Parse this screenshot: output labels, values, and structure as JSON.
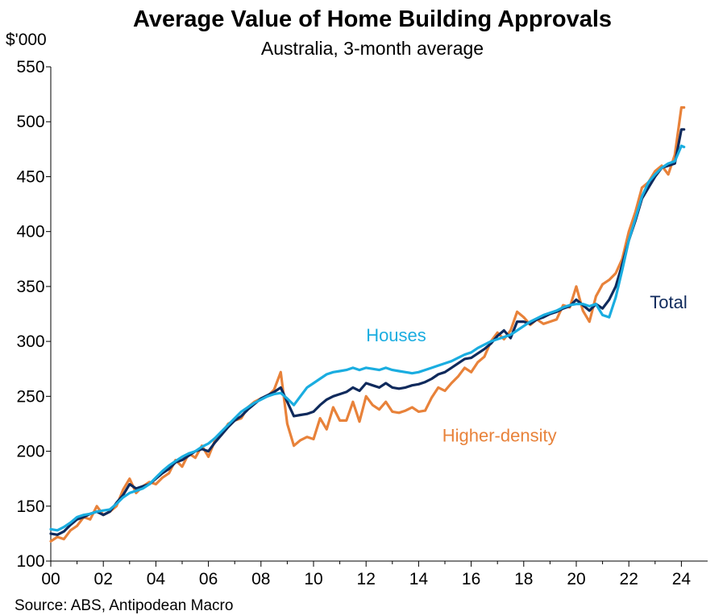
{
  "chart_data": {
    "type": "line",
    "title": "Average Value of Home Building Approvals",
    "subtitle": "Australia, 3-month average",
    "ylabel": "$'000",
    "source": "Source: ABS, Antipodean Macro",
    "xlim": [
      2000,
      2025
    ],
    "ylim": [
      100,
      550
    ],
    "x_ticks": [
      "00",
      "02",
      "04",
      "06",
      "08",
      "10",
      "12",
      "14",
      "16",
      "18",
      "20",
      "22",
      "24"
    ],
    "y_ticks": [
      "100",
      "150",
      "200",
      "250",
      "300",
      "350",
      "400",
      "450",
      "500",
      "550"
    ],
    "series": [
      {
        "name": "Higher-density",
        "color": "#E8823A",
        "points": [
          [
            2000,
            118
          ],
          [
            2000.25,
            122
          ],
          [
            2000.5,
            120
          ],
          [
            2000.75,
            128
          ],
          [
            2001,
            132
          ],
          [
            2001.25,
            140
          ],
          [
            2001.5,
            138
          ],
          [
            2001.75,
            150
          ],
          [
            2002,
            142
          ],
          [
            2002.25,
            145
          ],
          [
            2002.5,
            150
          ],
          [
            2002.75,
            165
          ],
          [
            2003,
            175
          ],
          [
            2003.25,
            162
          ],
          [
            2003.5,
            168
          ],
          [
            2003.75,
            172
          ],
          [
            2004,
            170
          ],
          [
            2004.25,
            176
          ],
          [
            2004.5,
            180
          ],
          [
            2004.75,
            192
          ],
          [
            2005,
            186
          ],
          [
            2005.25,
            198
          ],
          [
            2005.5,
            194
          ],
          [
            2005.75,
            205
          ],
          [
            2006,
            195
          ],
          [
            2006.25,
            210
          ],
          [
            2006.5,
            215
          ],
          [
            2006.75,
            225
          ],
          [
            2007,
            228
          ],
          [
            2007.25,
            230
          ],
          [
            2007.5,
            240
          ],
          [
            2007.75,
            245
          ],
          [
            2008,
            248
          ],
          [
            2008.25,
            250
          ],
          [
            2008.5,
            256
          ],
          [
            2008.75,
            272
          ],
          [
            2009,
            225
          ],
          [
            2009.25,
            205
          ],
          [
            2009.5,
            210
          ],
          [
            2009.75,
            213
          ],
          [
            2010,
            211
          ],
          [
            2010.25,
            230
          ],
          [
            2010.5,
            220
          ],
          [
            2010.75,
            240
          ],
          [
            2011,
            228
          ],
          [
            2011.25,
            228
          ],
          [
            2011.5,
            245
          ],
          [
            2011.75,
            227
          ],
          [
            2012,
            250
          ],
          [
            2012.25,
            242
          ],
          [
            2012.5,
            238
          ],
          [
            2012.75,
            245
          ],
          [
            2013,
            236
          ],
          [
            2013.25,
            235
          ],
          [
            2013.5,
            237
          ],
          [
            2013.75,
            240
          ],
          [
            2014,
            236
          ],
          [
            2014.25,
            237
          ],
          [
            2014.5,
            249
          ],
          [
            2014.75,
            258
          ],
          [
            2015,
            255
          ],
          [
            2015.25,
            262
          ],
          [
            2015.5,
            268
          ],
          [
            2015.75,
            276
          ],
          [
            2016,
            272
          ],
          [
            2016.25,
            281
          ],
          [
            2016.5,
            286
          ],
          [
            2016.75,
            300
          ],
          [
            2017,
            308
          ],
          [
            2017.25,
            302
          ],
          [
            2017.5,
            310
          ],
          [
            2017.75,
            327
          ],
          [
            2018,
            322
          ],
          [
            2018.25,
            315
          ],
          [
            2018.5,
            320
          ],
          [
            2018.75,
            316
          ],
          [
            2019,
            318
          ],
          [
            2019.25,
            320
          ],
          [
            2019.5,
            333
          ],
          [
            2019.75,
            331
          ],
          [
            2020,
            350
          ],
          [
            2020.25,
            328
          ],
          [
            2020.5,
            318
          ],
          [
            2020.75,
            341
          ],
          [
            2021,
            352
          ],
          [
            2021.25,
            356
          ],
          [
            2021.5,
            362
          ],
          [
            2021.75,
            375
          ],
          [
            2022,
            400
          ],
          [
            2022.25,
            418
          ],
          [
            2022.5,
            440
          ],
          [
            2022.75,
            445
          ],
          [
            2023,
            455
          ],
          [
            2023.25,
            460
          ],
          [
            2023.5,
            452
          ],
          [
            2023.75,
            470
          ],
          [
            2024,
            513
          ],
          [
            2024.1,
            513
          ]
        ]
      },
      {
        "name": "Total",
        "color": "#0F2A5C",
        "points": [
          [
            2000,
            125
          ],
          [
            2000.25,
            124
          ],
          [
            2000.5,
            127
          ],
          [
            2000.75,
            133
          ],
          [
            2001,
            138
          ],
          [
            2001.25,
            140
          ],
          [
            2001.5,
            143
          ],
          [
            2001.75,
            145
          ],
          [
            2002,
            142
          ],
          [
            2002.25,
            145
          ],
          [
            2002.5,
            153
          ],
          [
            2002.75,
            160
          ],
          [
            2003,
            170
          ],
          [
            2003.25,
            166
          ],
          [
            2003.5,
            168
          ],
          [
            2003.75,
            170
          ],
          [
            2004,
            175
          ],
          [
            2004.25,
            180
          ],
          [
            2004.5,
            184
          ],
          [
            2004.75,
            190
          ],
          [
            2005,
            192
          ],
          [
            2005.25,
            196
          ],
          [
            2005.5,
            200
          ],
          [
            2005.75,
            202
          ],
          [
            2006,
            200
          ],
          [
            2006.25,
            208
          ],
          [
            2006.5,
            215
          ],
          [
            2006.75,
            222
          ],
          [
            2007,
            228
          ],
          [
            2007.25,
            232
          ],
          [
            2007.5,
            238
          ],
          [
            2007.75,
            243
          ],
          [
            2008,
            248
          ],
          [
            2008.25,
            251
          ],
          [
            2008.5,
            254
          ],
          [
            2008.75,
            258
          ],
          [
            2009,
            245
          ],
          [
            2009.25,
            232
          ],
          [
            2009.5,
            233
          ],
          [
            2009.75,
            234
          ],
          [
            2010,
            236
          ],
          [
            2010.25,
            242
          ],
          [
            2010.5,
            247
          ],
          [
            2010.75,
            250
          ],
          [
            2011,
            252
          ],
          [
            2011.25,
            254
          ],
          [
            2011.5,
            258
          ],
          [
            2011.75,
            255
          ],
          [
            2012,
            262
          ],
          [
            2012.25,
            260
          ],
          [
            2012.5,
            258
          ],
          [
            2012.75,
            262
          ],
          [
            2013,
            258
          ],
          [
            2013.25,
            257
          ],
          [
            2013.5,
            258
          ],
          [
            2013.75,
            260
          ],
          [
            2014,
            261
          ],
          [
            2014.25,
            263
          ],
          [
            2014.5,
            266
          ],
          [
            2014.75,
            270
          ],
          [
            2015,
            272
          ],
          [
            2015.25,
            276
          ],
          [
            2015.5,
            280
          ],
          [
            2015.75,
            284
          ],
          [
            2016,
            285
          ],
          [
            2016.25,
            289
          ],
          [
            2016.5,
            293
          ],
          [
            2016.75,
            298
          ],
          [
            2017,
            305
          ],
          [
            2017.25,
            310
          ],
          [
            2017.5,
            303
          ],
          [
            2017.75,
            318
          ],
          [
            2018,
            318
          ],
          [
            2018.25,
            316
          ],
          [
            2018.5,
            320
          ],
          [
            2018.75,
            322
          ],
          [
            2019,
            325
          ],
          [
            2019.25,
            327
          ],
          [
            2019.5,
            330
          ],
          [
            2019.75,
            332
          ],
          [
            2020,
            338
          ],
          [
            2020.25,
            333
          ],
          [
            2020.5,
            328
          ],
          [
            2020.75,
            334
          ],
          [
            2021,
            330
          ],
          [
            2021.25,
            338
          ],
          [
            2021.5,
            350
          ],
          [
            2021.75,
            370
          ],
          [
            2022,
            392
          ],
          [
            2022.25,
            410
          ],
          [
            2022.5,
            430
          ],
          [
            2022.75,
            440
          ],
          [
            2023,
            450
          ],
          [
            2023.25,
            458
          ],
          [
            2023.5,
            460
          ],
          [
            2023.75,
            462
          ],
          [
            2024,
            493
          ],
          [
            2024.1,
            493
          ]
        ]
      },
      {
        "name": "Houses",
        "color": "#1AADE0",
        "points": [
          [
            2000,
            129
          ],
          [
            2000.25,
            128
          ],
          [
            2000.5,
            131
          ],
          [
            2000.75,
            135
          ],
          [
            2001,
            140
          ],
          [
            2001.25,
            142
          ],
          [
            2001.5,
            143
          ],
          [
            2001.75,
            145
          ],
          [
            2002,
            146
          ],
          [
            2002.25,
            147
          ],
          [
            2002.5,
            152
          ],
          [
            2002.75,
            158
          ],
          [
            2003,
            162
          ],
          [
            2003.25,
            164
          ],
          [
            2003.5,
            166
          ],
          [
            2003.75,
            170
          ],
          [
            2004,
            176
          ],
          [
            2004.25,
            182
          ],
          [
            2004.5,
            187
          ],
          [
            2004.75,
            191
          ],
          [
            2005,
            195
          ],
          [
            2005.25,
            198
          ],
          [
            2005.5,
            200
          ],
          [
            2005.75,
            204
          ],
          [
            2006,
            207
          ],
          [
            2006.25,
            212
          ],
          [
            2006.5,
            218
          ],
          [
            2006.75,
            224
          ],
          [
            2007,
            230
          ],
          [
            2007.25,
            236
          ],
          [
            2007.5,
            240
          ],
          [
            2007.75,
            244
          ],
          [
            2008,
            247
          ],
          [
            2008.25,
            250
          ],
          [
            2008.5,
            252
          ],
          [
            2008.75,
            253
          ],
          [
            2009,
            248
          ],
          [
            2009.25,
            242
          ],
          [
            2009.5,
            250
          ],
          [
            2009.75,
            258
          ],
          [
            2010,
            262
          ],
          [
            2010.25,
            266
          ],
          [
            2010.5,
            270
          ],
          [
            2010.75,
            272
          ],
          [
            2011,
            273
          ],
          [
            2011.25,
            274
          ],
          [
            2011.5,
            276
          ],
          [
            2011.75,
            274
          ],
          [
            2012,
            276
          ],
          [
            2012.25,
            275
          ],
          [
            2012.5,
            274
          ],
          [
            2012.75,
            276
          ],
          [
            2013,
            274
          ],
          [
            2013.25,
            273
          ],
          [
            2013.5,
            272
          ],
          [
            2013.75,
            271
          ],
          [
            2014,
            272
          ],
          [
            2014.25,
            274
          ],
          [
            2014.5,
            276
          ],
          [
            2014.75,
            278
          ],
          [
            2015,
            280
          ],
          [
            2015.25,
            282
          ],
          [
            2015.5,
            285
          ],
          [
            2015.75,
            288
          ],
          [
            2016,
            290
          ],
          [
            2016.25,
            294
          ],
          [
            2016.5,
            297
          ],
          [
            2016.75,
            300
          ],
          [
            2017,
            302
          ],
          [
            2017.25,
            304
          ],
          [
            2017.5,
            306
          ],
          [
            2017.75,
            310
          ],
          [
            2018,
            314
          ],
          [
            2018.25,
            318
          ],
          [
            2018.5,
            321
          ],
          [
            2018.75,
            324
          ],
          [
            2019,
            326
          ],
          [
            2019.25,
            328
          ],
          [
            2019.5,
            331
          ],
          [
            2019.75,
            333
          ],
          [
            2020,
            334
          ],
          [
            2020.25,
            334
          ],
          [
            2020.5,
            332
          ],
          [
            2020.75,
            334
          ],
          [
            2021,
            324
          ],
          [
            2021.25,
            322
          ],
          [
            2021.5,
            340
          ],
          [
            2021.75,
            365
          ],
          [
            2022,
            392
          ],
          [
            2022.25,
            412
          ],
          [
            2022.5,
            432
          ],
          [
            2022.75,
            445
          ],
          [
            2023,
            452
          ],
          [
            2023.25,
            458
          ],
          [
            2023.5,
            462
          ],
          [
            2023.75,
            464
          ],
          [
            2024,
            478
          ],
          [
            2024.1,
            477
          ]
        ]
      }
    ],
    "annotations": [
      {
        "text": "Houses",
        "x": 2012,
        "y": 300,
        "color": "#1AADE0"
      },
      {
        "text": "Higher-density",
        "x": 2014.9,
        "y": 209,
        "color": "#E8823A"
      },
      {
        "text": "Total",
        "x": 2022.8,
        "y": 330,
        "color": "#0F2A5C"
      }
    ]
  }
}
